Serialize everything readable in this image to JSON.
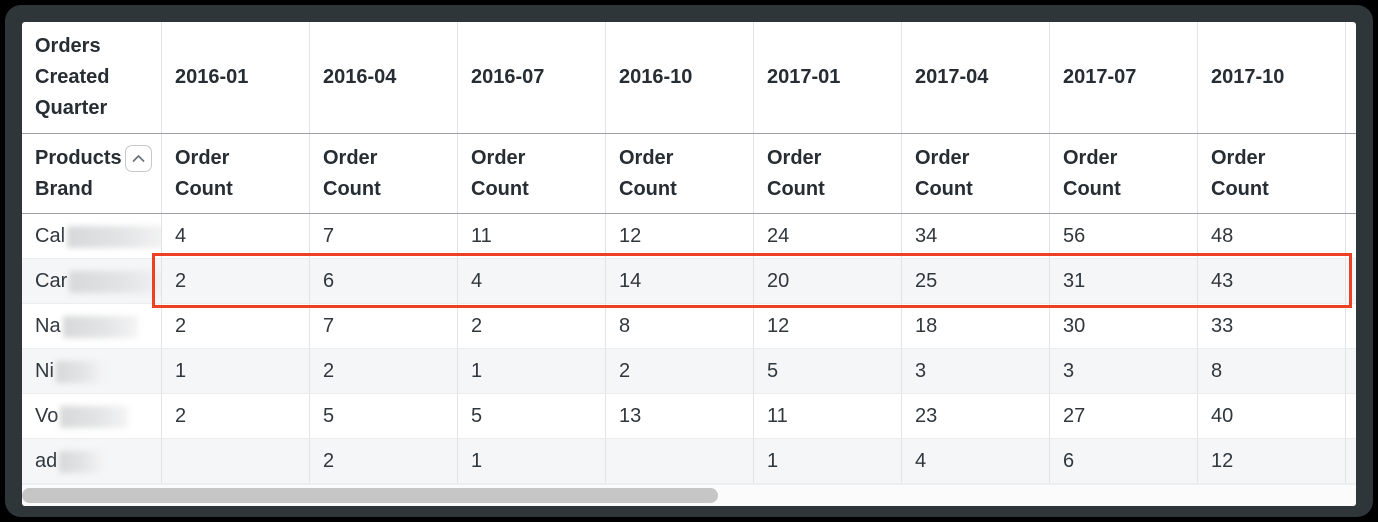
{
  "table": {
    "corner_header": "Orders Created Quarter",
    "row_dimension": {
      "label_line1": "Products",
      "label_line2": "Brand",
      "sort_icon": "chevron-up"
    },
    "measure_label": "Order Count",
    "columns": [
      "2016-01",
      "2016-04",
      "2016-07",
      "2016-10",
      "2017-01",
      "2017-04",
      "2017-07",
      "2017-10"
    ],
    "rows": [
      {
        "brand_prefix": "Cal",
        "redacted": true,
        "values": [
          "4",
          "7",
          "11",
          "12",
          "24",
          "34",
          "56",
          "48"
        ],
        "highlighted": false
      },
      {
        "brand_prefix": "Car",
        "redacted": true,
        "values": [
          "2",
          "6",
          "4",
          "14",
          "20",
          "25",
          "31",
          "43"
        ],
        "highlighted": true
      },
      {
        "brand_prefix": "Na",
        "redacted": true,
        "values": [
          "2",
          "7",
          "2",
          "8",
          "12",
          "18",
          "30",
          "33"
        ],
        "highlighted": false
      },
      {
        "brand_prefix": "Ni",
        "redacted": true,
        "values": [
          "1",
          "2",
          "1",
          "2",
          "5",
          "3",
          "3",
          "8"
        ],
        "highlighted": false
      },
      {
        "brand_prefix": "Vo",
        "redacted": true,
        "values": [
          "2",
          "5",
          "5",
          "13",
          "11",
          "23",
          "27",
          "40"
        ],
        "highlighted": false
      },
      {
        "brand_prefix": "ad",
        "redacted": true,
        "values": [
          "",
          "2",
          "1",
          "",
          "1",
          "4",
          "6",
          "12"
        ],
        "highlighted": false
      }
    ]
  },
  "colors": {
    "highlight_border": "#EE4023",
    "header_text": "#262D33",
    "row_stripe": "#F5F6F7",
    "scrollbar_thumb": "#C6C6C6"
  }
}
